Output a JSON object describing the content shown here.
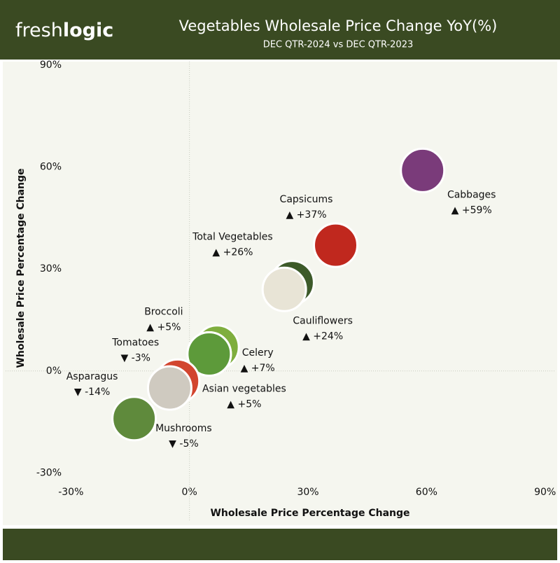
{
  "brand": {
    "light": "fresh",
    "bold": "logic"
  },
  "chart_data": {
    "type": "scatter",
    "title": "Vegetables Wholesale Price Change YoY(%)",
    "subtitle": "DEC QTR-2024 vs DEC QTR-2023",
    "x_label": "Wholesale Price Percentage Change",
    "y_label": "Wholesale Price Percentage Change",
    "xlim": [
      -32,
      92
    ],
    "ylim": [
      -33,
      91
    ],
    "xticks": [
      {
        "value": -30,
        "label": "-30%"
      },
      {
        "value": 0,
        "label": "0%"
      },
      {
        "value": 30,
        "label": "30%"
      },
      {
        "value": 60,
        "label": "60%"
      },
      {
        "value": 90,
        "label": "90%"
      }
    ],
    "yticks": [
      {
        "value": -30,
        "label": "-30%"
      },
      {
        "value": 0,
        "label": "0%"
      },
      {
        "value": 30,
        "label": "30%"
      },
      {
        "value": 60,
        "label": "60%"
      },
      {
        "value": 90,
        "label": "90%"
      }
    ],
    "zero_lines": true,
    "categories": [
      "Cabbages",
      "Capsicums",
      "Total Vegetables",
      "Cauliflowers",
      "Celery",
      "Broccoli",
      "Asian vegetables",
      "Tomatoes",
      "Mushrooms",
      "Asparagus"
    ],
    "x": [
      59,
      37,
      26,
      24,
      7,
      5,
      5,
      -3,
      -5,
      -14
    ],
    "values": [
      59,
      37,
      26,
      24,
      7,
      5,
      5,
      -3,
      -5,
      -14
    ],
    "value_labels": [
      "▲ +59%",
      "▲ +37%",
      "▲ +26%",
      "▲ +24%",
      "▲ +7%",
      "▲ +5%",
      "▲ +5%",
      "▼ -3%",
      "▼ -5%",
      "▼ -14%"
    ],
    "colors": [
      "#7a3b7a",
      "#c0281e",
      "#3d5a2a",
      "#e8e4d6",
      "#7fae3e",
      "#2f6b2a",
      "#5d9a3a",
      "#d2452f",
      "#cfcac0",
      "#5f8a3c"
    ]
  }
}
